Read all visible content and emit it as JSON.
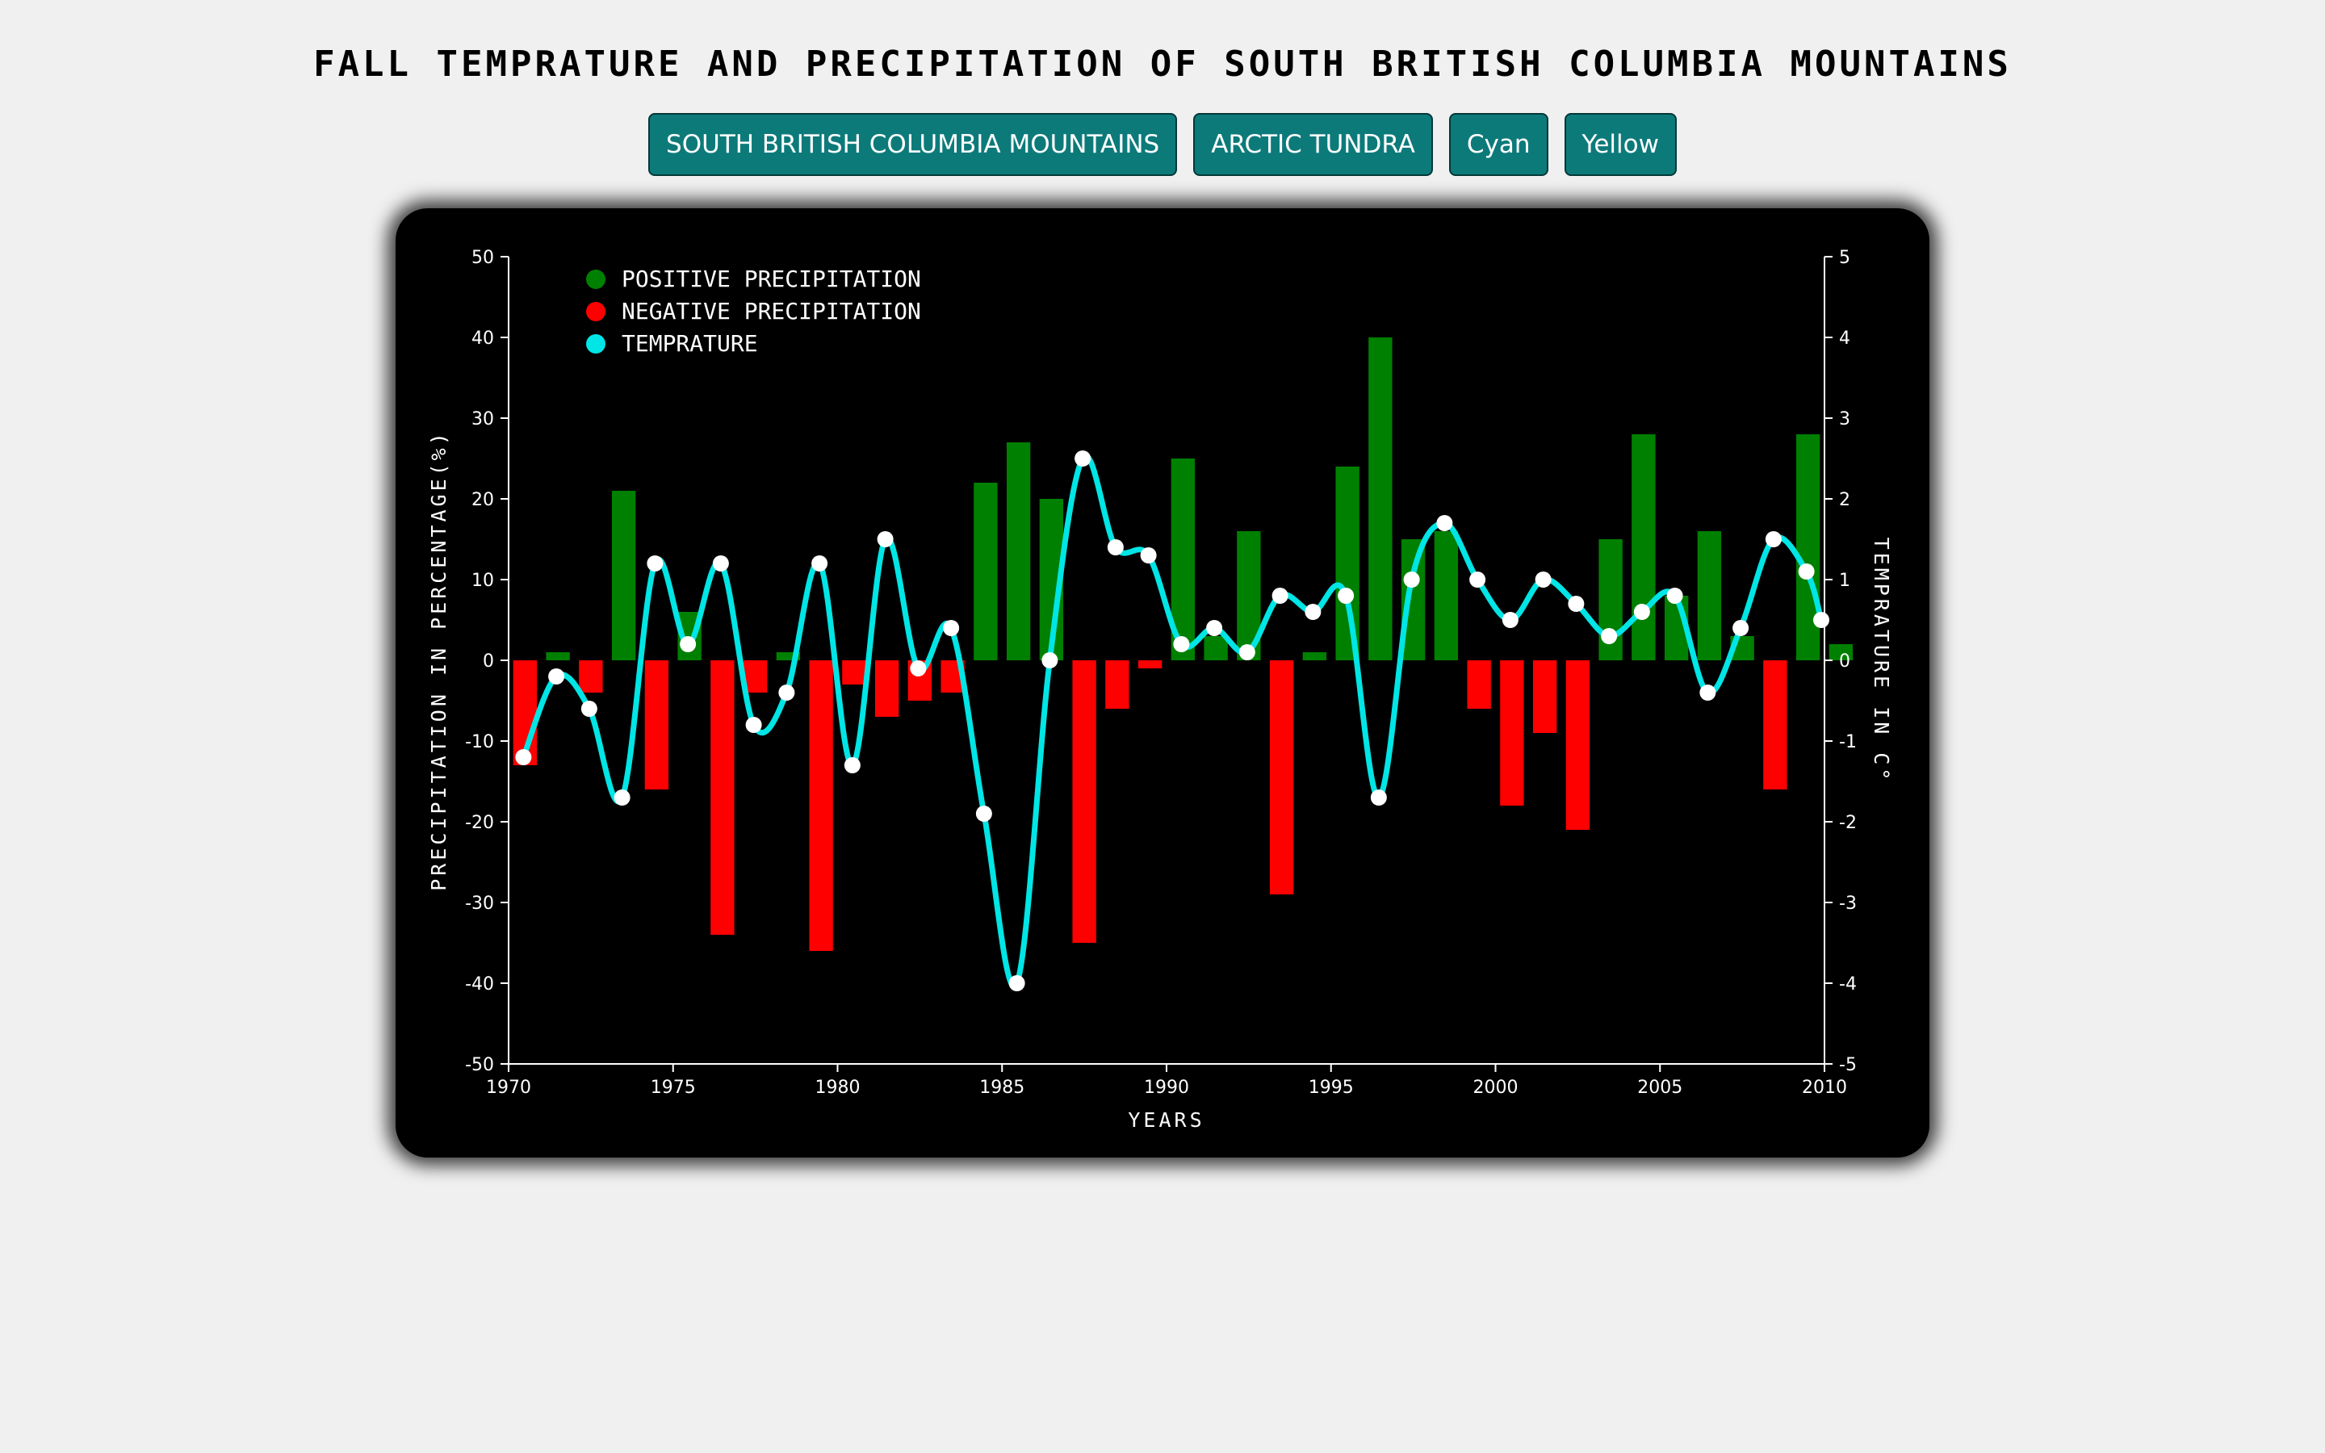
{
  "title": "FALL TEMPRATURE AND PRECIPITATION OF SOUTH BRITISH COLUMBIA MOUNTAINS",
  "buttons": [
    {
      "label": "SOUTH BRITISH COLUMBIA MOUNTAINS"
    },
    {
      "label": "ARCTIC TUNDRA"
    },
    {
      "label": "Cyan"
    },
    {
      "label": "Yellow"
    }
  ],
  "colors": {
    "positive": "#008000",
    "negative": "#ff0000",
    "temperature_line": "#00e5e5",
    "point": "#ffffff",
    "button_bg": "#0d7a7a"
  },
  "chart_data": {
    "type": "bar",
    "xlabel": "YEARS",
    "ylabel": "PRECIPITATION IN PERCENTAGE(%)",
    "y2label": "TEMPRATURE IN C°",
    "xlim": [
      1970,
      2010
    ],
    "ylim": [
      -50,
      50
    ],
    "y2lim": [
      -5,
      5
    ],
    "x_ticks": [
      1970,
      1975,
      1980,
      1985,
      1990,
      1995,
      2000,
      2005,
      2010
    ],
    "y_ticks": [
      50,
      40,
      30,
      20,
      10,
      0,
      -10,
      -20,
      -30,
      -40,
      -50
    ],
    "y2_ticks": [
      5,
      4,
      3,
      2,
      1,
      0,
      -1,
      -2,
      -3,
      -4,
      -5
    ],
    "legend": [
      "POSITIVE PRECIPITATION",
      "NEGATIVE PRECIPITATION",
      "TEMPRATURE"
    ],
    "legend_position": "top-left",
    "grid": false,
    "years": [
      1970,
      1971,
      1972,
      1973,
      1974,
      1975,
      1976,
      1977,
      1978,
      1979,
      1980,
      1981,
      1982,
      1983,
      1984,
      1985,
      1986,
      1987,
      1988,
      1989,
      1990,
      1991,
      1992,
      1993,
      1994,
      1995,
      1996,
      1997,
      1998,
      1999,
      2000,
      2001,
      2002,
      2003,
      2004,
      2005,
      2006,
      2007,
      2008,
      2009,
      2010
    ],
    "series": [
      {
        "name": "POSITIVE PRECIPITATION / NEGATIVE PRECIPITATION",
        "axis": "left",
        "values": [
          -13,
          1,
          -4,
          21,
          -16,
          6,
          -34,
          -4,
          1,
          -36,
          -3,
          -7,
          -5,
          -4,
          22,
          27,
          20,
          -35,
          -6,
          -1,
          25,
          3,
          16,
          -29,
          1,
          24,
          40,
          15,
          16,
          -6,
          -18,
          -9,
          -21,
          15,
          28,
          8,
          16,
          3,
          -16,
          28,
          2
        ]
      },
      {
        "name": "TEMPRATURE",
        "axis": "right",
        "values": [
          -1.2,
          -0.2,
          -0.6,
          -1.7,
          1.2,
          0.2,
          1.2,
          -0.8,
          -0.4,
          1.2,
          -1.3,
          1.5,
          -0.1,
          0.4,
          -1.9,
          -4.0,
          0.0,
          2.5,
          1.4,
          1.3,
          0.2,
          0.4,
          0.1,
          0.8,
          0.6,
          0.8,
          -1.7,
          1.0,
          1.7,
          1.0,
          0.5,
          1.0,
          0.7,
          0.3,
          0.6,
          0.8,
          -0.4,
          0.4,
          1.5,
          1.1,
          0.5
        ]
      }
    ]
  }
}
